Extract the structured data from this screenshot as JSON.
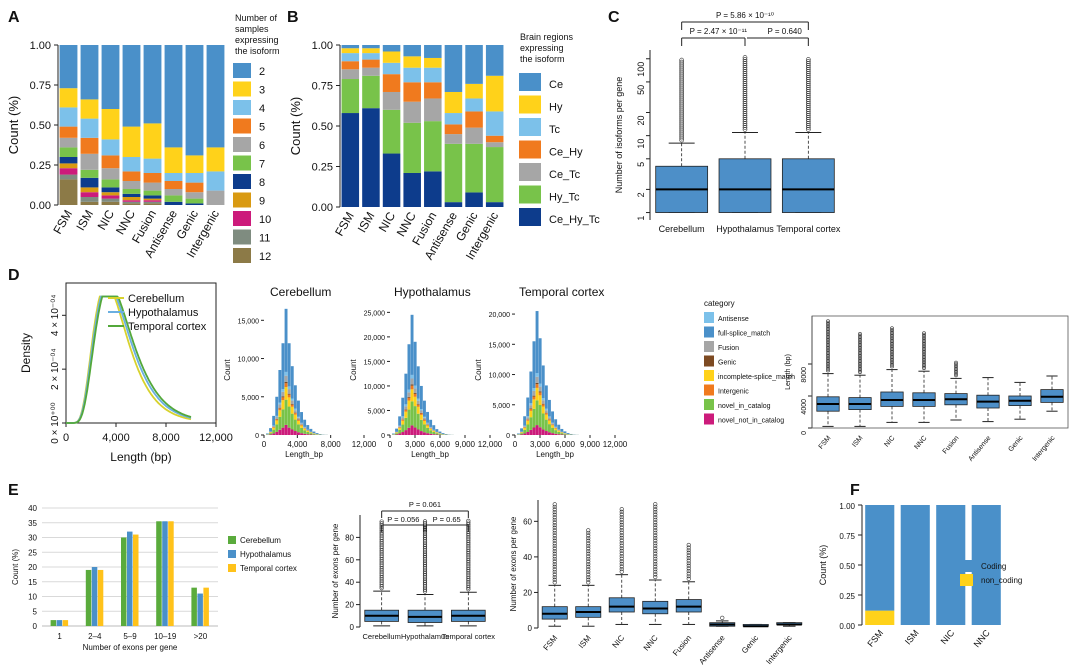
{
  "colors": {
    "counts": {
      "2": "#4a90c9",
      "3": "#ffd21a",
      "4": "#7cc1ea",
      "5": "#f07a1e",
      "6": "#a6a6a6",
      "7": "#78c34a",
      "8": "#0d3c8c",
      "9": "#d99a12",
      "10": "#cc1b7b",
      "11": "#7f8c80",
      "12": "#8c7a47"
    },
    "regions": {
      "Ce": "#4a90c9",
      "Hy": "#ffd21a",
      "Tc": "#7cc1ea",
      "Ce_Hy": "#f07a1e",
      "Ce_Tc": "#a6a6a6",
      "Hy_Tc": "#78c34a",
      "Ce_Hy_Tc": "#0d3c8c"
    },
    "lines": {
      "Cerebellum": "#d7d22d",
      "Hypothalamus": "#6aafe0",
      "Temporal cortex": "#53a83a"
    },
    "e_bars": {
      "Cerebellum": "#5aab3c",
      "Hypothalamus": "#4a90c9",
      "Temporal cortex": "#ffc21a"
    },
    "box": "#4d8fc8",
    "hist": {
      "Antisense": "#7cc1ea",
      "full-splice_match": "#4a90c9",
      "Fusion": "#a6a6a6",
      "Genic": "#7d4a22",
      "incomplete-splice_match": "#ffd21a",
      "Intergenic": "#f07a1e",
      "novel_in_catalog": "#78c34a",
      "novel_not_in_catalog": "#cc1b7b"
    },
    "coding": {
      "Coding": "#4a90c9",
      "non_coding": "#ffd21a"
    }
  },
  "panels": {
    "A": "A",
    "B": "B",
    "C": "C",
    "D": "D",
    "E": "E",
    "F": "F"
  },
  "chart_data": [
    {
      "id": "A",
      "type": "bar",
      "stacked": true,
      "ylabel": "Count (%)",
      "yticks": [
        "0.00",
        "0.25",
        "0.50",
        "0.75",
        "1.00"
      ],
      "ylim": [
        0,
        1
      ],
      "categories": [
        "FSM",
        "ISM",
        "NIC",
        "NNC",
        "Fusion",
        "Antisense",
        "Genic",
        "Intergenic"
      ],
      "legend_title": "Number of samples expressing the isoform",
      "legend_title_lines": [
        "Number of",
        "samples",
        "expressing",
        "the isoform"
      ],
      "series": [
        {
          "name": "12",
          "values": [
            0.16,
            0.02,
            0.02,
            0.01,
            0.01,
            0.0,
            0.0,
            0.0
          ]
        },
        {
          "name": "11",
          "values": [
            0.03,
            0.03,
            0.02,
            0.01,
            0.01,
            0.0,
            0.0,
            0.0
          ]
        },
        {
          "name": "10",
          "values": [
            0.04,
            0.03,
            0.02,
            0.01,
            0.01,
            0.0,
            0.0,
            0.0
          ]
        },
        {
          "name": "9",
          "values": [
            0.03,
            0.03,
            0.02,
            0.02,
            0.01,
            0.0,
            0.0,
            0.0
          ]
        },
        {
          "name": "8",
          "values": [
            0.04,
            0.06,
            0.03,
            0.02,
            0.02,
            0.02,
            0.01,
            0.0
          ]
        },
        {
          "name": "7",
          "values": [
            0.06,
            0.05,
            0.05,
            0.03,
            0.03,
            0.04,
            0.03,
            0.0
          ]
        },
        {
          "name": "6",
          "values": [
            0.06,
            0.1,
            0.07,
            0.05,
            0.05,
            0.04,
            0.04,
            0.09
          ]
        },
        {
          "name": "5",
          "values": [
            0.07,
            0.1,
            0.08,
            0.06,
            0.06,
            0.05,
            0.06,
            0.0
          ]
        },
        {
          "name": "4",
          "values": [
            0.12,
            0.12,
            0.1,
            0.09,
            0.09,
            0.05,
            0.06,
            0.12
          ]
        },
        {
          "name": "3",
          "values": [
            0.12,
            0.12,
            0.19,
            0.19,
            0.22,
            0.16,
            0.11,
            0.15
          ]
        },
        {
          "name": "2",
          "values": [
            0.27,
            0.34,
            0.4,
            0.51,
            0.49,
            0.64,
            0.69,
            0.64
          ]
        }
      ]
    },
    {
      "id": "B",
      "type": "bar",
      "stacked": true,
      "ylabel": "Count (%)",
      "yticks": [
        "0.00",
        "0.25",
        "0.50",
        "0.75",
        "1.00"
      ],
      "ylim": [
        0,
        1
      ],
      "categories": [
        "FSM",
        "ISM",
        "NIC",
        "NNC",
        "Fusion",
        "Antisense",
        "Genic",
        "Intergenic"
      ],
      "legend_title": "Brain regions expressing the isoform",
      "legend_title_lines": [
        "Brain regions",
        "expressing",
        "the isoform"
      ],
      "series": [
        {
          "name": "Ce_Hy_Tc",
          "values": [
            0.58,
            0.61,
            0.33,
            0.21,
            0.22,
            0.03,
            0.09,
            0.03
          ]
        },
        {
          "name": "Hy_Tc",
          "values": [
            0.21,
            0.2,
            0.27,
            0.31,
            0.31,
            0.36,
            0.3,
            0.34
          ]
        },
        {
          "name": "Ce_Tc",
          "values": [
            0.06,
            0.05,
            0.11,
            0.13,
            0.14,
            0.06,
            0.1,
            0.03
          ]
        },
        {
          "name": "Ce_Hy",
          "values": [
            0.05,
            0.05,
            0.11,
            0.12,
            0.1,
            0.06,
            0.1,
            0.04
          ]
        },
        {
          "name": "Tc",
          "values": [
            0.05,
            0.04,
            0.07,
            0.09,
            0.09,
            0.07,
            0.08,
            0.15
          ]
        },
        {
          "name": "Hy",
          "values": [
            0.03,
            0.03,
            0.07,
            0.07,
            0.06,
            0.13,
            0.09,
            0.22
          ]
        },
        {
          "name": "Ce",
          "values": [
            0.02,
            0.02,
            0.04,
            0.07,
            0.08,
            0.29,
            0.24,
            0.19
          ]
        }
      ]
    },
    {
      "id": "C",
      "type": "box",
      "ylabel": "Number of isoforms per gene",
      "yscale": "log",
      "yticks": [
        "1",
        "2",
        "5",
        "10",
        "20",
        "50",
        "100"
      ],
      "categories": [
        "Cerebellum",
        "Hypothalamus",
        "Temporal cortex"
      ],
      "boxes": [
        {
          "low": 1,
          "q1": 1,
          "median": 2,
          "q3": 4,
          "high": 8,
          "outlier_max": 100
        },
        {
          "low": 1,
          "q1": 1,
          "median": 2,
          "q3": 5,
          "high": 11,
          "outlier_max": 110
        },
        {
          "low": 1,
          "q1": 1,
          "median": 2,
          "q3": 5,
          "high": 11,
          "outlier_max": 100
        }
      ],
      "comparisons": [
        "P = 2.47 × 10⁻¹¹",
        "P = 0.640",
        "P = 5.86 × 10⁻¹⁰"
      ]
    },
    {
      "id": "D1",
      "type": "line",
      "xlabel": "Length (bp)",
      "ylabel": "Density",
      "xticks": [
        "0",
        "4,000",
        "8,000",
        "12,000"
      ],
      "yticks": [
        "0 × 10⁺⁰⁰",
        "2 × 10⁻⁰⁴",
        "4 × 10⁻⁰⁴"
      ],
      "series": [
        {
          "name": "Cerebellum",
          "peak_x": 2700,
          "peak_y": 0.00047,
          "sd": 1500
        },
        {
          "name": "Hypothalamus",
          "peak_x": 2800,
          "peak_y": 0.00047,
          "sd": 1600
        },
        {
          "name": "Temporal cortex",
          "peak_x": 2900,
          "peak_y": 0.00047,
          "sd": 1550
        }
      ]
    },
    {
      "id": "D2",
      "type": "bar",
      "stacked": true,
      "histogram": true,
      "subplots": [
        {
          "title": "Cerebellum",
          "yticks": [
            "0",
            "5,000",
            "10,000",
            "15,000"
          ],
          "ymax": 17000,
          "xticks": [
            "0",
            "4,000",
            "8,000",
            "12,000"
          ],
          "totals": [
            200,
            900,
            2500,
            5000,
            8500,
            12000,
            16500,
            12000,
            9000,
            6500,
            4500,
            3000,
            2000,
            1300,
            800,
            450,
            250,
            130,
            60,
            30
          ]
        },
        {
          "title": "Hypothalamus",
          "yticks": [
            "0",
            "5,000",
            "10,000",
            "15,000",
            "20,000",
            "25,000"
          ],
          "ymax": 26500,
          "xticks": [
            "0",
            "3,000",
            "6,000",
            "9,000",
            "12,000"
          ],
          "totals": [
            300,
            1300,
            3800,
            7600,
            12500,
            18500,
            24500,
            19000,
            14000,
            10000,
            7000,
            4700,
            3100,
            2000,
            1200,
            700,
            380,
            200,
            90,
            40
          ]
        },
        {
          "title": "Temporal cortex",
          "yticks": [
            "0",
            "5,000",
            "10,000",
            "15,000",
            "20,000"
          ],
          "ymax": 21500,
          "xticks": [
            "0",
            "3,000",
            "6,000",
            "9,000",
            "12,000"
          ],
          "totals": [
            250,
            1100,
            3100,
            6200,
            10500,
            15500,
            20500,
            16000,
            11500,
            8200,
            5800,
            3900,
            2600,
            1700,
            1000,
            600,
            320,
            170,
            80,
            35
          ]
        }
      ],
      "xlabel": "Length_bp",
      "ylabel": "Count",
      "legend_title": "category",
      "categories": [
        "Antisense",
        "full-splice_match",
        "Fusion",
        "Genic",
        "incomplete-splice_match",
        "Intergenic",
        "novel_in_catalog",
        "novel_not_in_catalog"
      ]
    },
    {
      "id": "D3",
      "type": "box",
      "ylabel": "Length (bp)",
      "yticks": [
        "0",
        "4000",
        "8000"
      ],
      "categories": [
        "FSM",
        "ISM",
        "NIC",
        "NNC",
        "Fusion",
        "Antisense",
        "Genic",
        "Intergenic"
      ],
      "boxes": [
        {
          "low": 200,
          "q1": 2100,
          "median": 3000,
          "q3": 3900,
          "high": 6800,
          "outlier_max": 13500
        },
        {
          "low": 200,
          "q1": 2300,
          "median": 3000,
          "q3": 3800,
          "high": 6600,
          "outlier_max": 11800
        },
        {
          "low": 700,
          "q1": 2700,
          "median": 3500,
          "q3": 4500,
          "high": 7300,
          "outlier_max": 12500
        },
        {
          "low": 700,
          "q1": 2700,
          "median": 3500,
          "q3": 4400,
          "high": 7100,
          "outlier_max": 12000
        },
        {
          "low": 1000,
          "q1": 2900,
          "median": 3600,
          "q3": 4300,
          "high": 6200,
          "outlier_max": 8200
        },
        {
          "low": 800,
          "q1": 2500,
          "median": 3300,
          "q3": 4100,
          "high": 6300,
          "outlier_max": 6300
        },
        {
          "low": 1100,
          "q1": 2800,
          "median": 3400,
          "q3": 4000,
          "high": 5700,
          "outlier_max": 6000
        },
        {
          "low": 2100,
          "q1": 3200,
          "median": 3900,
          "q3": 4800,
          "high": 6500,
          "outlier_max": 6500
        }
      ]
    },
    {
      "id": "E1",
      "type": "bar",
      "xlabel": "Number of exons per gene",
      "ylabel": "Count (%)",
      "yticks": [
        "0",
        "5",
        "10",
        "15",
        "20",
        "25",
        "30",
        "35",
        "40"
      ],
      "ylim": [
        0,
        40
      ],
      "categories": [
        "1",
        "2–4",
        "5–9",
        "10–19",
        ">20"
      ],
      "series": [
        {
          "name": "Cerebellum",
          "values": [
            2,
            19,
            30,
            35.5,
            13
          ]
        },
        {
          "name": "Hypothalamus",
          "values": [
            2,
            20,
            32,
            35.5,
            11
          ]
        },
        {
          "name": "Temporal cortex",
          "values": [
            2,
            19,
            31,
            35.5,
            13
          ]
        }
      ]
    },
    {
      "id": "E2",
      "type": "box",
      "ylabel": "Number of exons per gene",
      "yticks": [
        "0",
        "20",
        "40",
        "60",
        "80"
      ],
      "categories": [
        "Cerebellum",
        "Hypothalamus",
        "Temporal cortex"
      ],
      "boxes": [
        {
          "low": 1,
          "q1": 5,
          "median": 10,
          "q3": 15,
          "high": 32,
          "outlier_max": 95
        },
        {
          "low": 1,
          "q1": 4,
          "median": 9,
          "q3": 15,
          "high": 29,
          "outlier_max": 95
        },
        {
          "low": 1,
          "q1": 5,
          "median": 10,
          "q3": 15,
          "high": 31,
          "outlier_max": 95
        }
      ],
      "comparisons": [
        "P = 0.056",
        "P = 0.65",
        "P = 0.061"
      ]
    },
    {
      "id": "E3",
      "type": "box",
      "ylabel": "Number of exons per gene",
      "yticks": [
        "0",
        "20",
        "40",
        "60"
      ],
      "categories": [
        "FSM",
        "ISM",
        "NIC",
        "NNC",
        "Fusion",
        "Antisense",
        "Genic",
        "Intergenic"
      ],
      "boxes": [
        {
          "low": 1,
          "q1": 5,
          "median": 8,
          "q3": 12,
          "high": 24,
          "outlier_max": 70
        },
        {
          "low": 1,
          "q1": 6,
          "median": 9,
          "q3": 12,
          "high": 24,
          "outlier_max": 55
        },
        {
          "low": 2,
          "q1": 9,
          "median": 12,
          "q3": 17,
          "high": 30,
          "outlier_max": 67
        },
        {
          "low": 2,
          "q1": 8,
          "median": 11,
          "q3": 15,
          "high": 27,
          "outlier_max": 70
        },
        {
          "low": 2,
          "q1": 9,
          "median": 12,
          "q3": 16,
          "high": 26,
          "outlier_max": 48
        },
        {
          "low": 1,
          "q1": 1,
          "median": 2,
          "q3": 3,
          "high": 4,
          "outlier_max": 6
        },
        {
          "low": 1,
          "q1": 1,
          "median": 1,
          "q3": 2,
          "high": 2,
          "outlier_max": 3
        },
        {
          "low": 1,
          "q1": 2,
          "median": 2,
          "q3": 3,
          "high": 3,
          "outlier_max": 3
        }
      ]
    },
    {
      "id": "F",
      "type": "bar",
      "stacked": true,
      "ylabel": "Count (%)",
      "yticks": [
        "0.00",
        "0.25",
        "0.50",
        "0.75",
        "1.00"
      ],
      "ylim": [
        0,
        1
      ],
      "categories": [
        "FSM",
        "ISM",
        "NIC",
        "NNC"
      ],
      "series": [
        {
          "name": "non_coding",
          "values": [
            0.12,
            0,
            0,
            0
          ]
        },
        {
          "name": "Coding",
          "values": [
            0.88,
            1,
            1,
            1
          ]
        }
      ]
    }
  ]
}
